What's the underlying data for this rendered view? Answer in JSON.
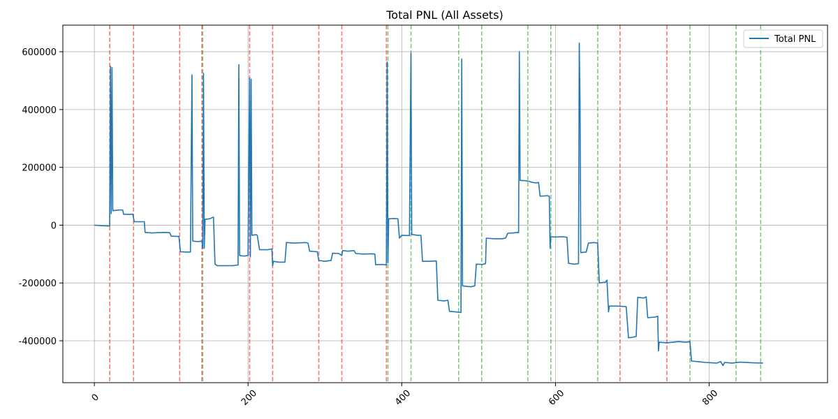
{
  "chart_data": {
    "type": "line",
    "title": "Total PNL (All Assets)",
    "xlabel": "",
    "ylabel": "",
    "xlim": [
      -41,
      954
    ],
    "ylim": [
      -545000,
      692000
    ],
    "x_ticks": [
      0,
      200,
      400,
      600,
      800
    ],
    "y_ticks": [
      -400000,
      -200000,
      0,
      200000,
      400000,
      600000
    ],
    "grid": true,
    "legend": {
      "position": "top-right",
      "entries": [
        "Total PNL"
      ]
    },
    "colors": {
      "line": "#1f77b4",
      "sell_marker": "#ff0000",
      "buy_marker": "#2ca02c",
      "grid": "#b0b0b0"
    },
    "series": [
      {
        "name": "Total PNL",
        "points": [
          [
            0,
            0
          ],
          [
            10,
            -2000
          ],
          [
            18,
            -3000
          ],
          [
            20,
            -2000
          ],
          [
            21,
            550000
          ],
          [
            22,
            40000
          ],
          [
            23,
            545000
          ],
          [
            24,
            50000
          ],
          [
            30,
            52000
          ],
          [
            35,
            53000
          ],
          [
            37,
            52000
          ],
          [
            38,
            38000
          ],
          [
            45,
            37000
          ],
          [
            50,
            38000
          ],
          [
            52,
            12000
          ],
          [
            60,
            12000
          ],
          [
            65,
            12000
          ],
          [
            66,
            -25000
          ],
          [
            75,
            -27000
          ],
          [
            90,
            -25000
          ],
          [
            98,
            -26000
          ],
          [
            100,
            -38000
          ],
          [
            110,
            -39000
          ],
          [
            112,
            -92000
          ],
          [
            120,
            -93000
          ],
          [
            125,
            -93000
          ],
          [
            127,
            520000
          ],
          [
            128,
            -55000
          ],
          [
            135,
            -57000
          ],
          [
            140,
            -55000
          ],
          [
            141,
            -80000
          ],
          [
            142,
            525000
          ],
          [
            143,
            -80000
          ],
          [
            144,
            20000
          ],
          [
            150,
            22000
          ],
          [
            155,
            28000
          ],
          [
            157,
            -135000
          ],
          [
            160,
            -140000
          ],
          [
            170,
            -140000
          ],
          [
            180,
            -140000
          ],
          [
            187,
            -138000
          ],
          [
            188,
            555000
          ],
          [
            189,
            -105000
          ],
          [
            195,
            -107000
          ],
          [
            200,
            -105000
          ],
          [
            202,
            510000
          ],
          [
            203,
            -110000
          ],
          [
            204,
            505000
          ],
          [
            205,
            -35000
          ],
          [
            210,
            -33000
          ],
          [
            212,
            -35000
          ],
          [
            215,
            -85000
          ],
          [
            225,
            -85000
          ],
          [
            231,
            -82000
          ],
          [
            232,
            -140000
          ],
          [
            233,
            -125000
          ],
          [
            240,
            -128000
          ],
          [
            248,
            -128000
          ],
          [
            250,
            -60000
          ],
          [
            260,
            -62000
          ],
          [
            275,
            -60000
          ],
          [
            278,
            -62000
          ],
          [
            280,
            -90000
          ],
          [
            290,
            -92000
          ],
          [
            292,
            -122000
          ],
          [
            300,
            -125000
          ],
          [
            308,
            -122000
          ],
          [
            310,
            -97000
          ],
          [
            318,
            -98000
          ],
          [
            322,
            -105000
          ],
          [
            323,
            -88000
          ],
          [
            330,
            -90000
          ],
          [
            338,
            -88000
          ],
          [
            340,
            -98000
          ],
          [
            350,
            -100000
          ],
          [
            360,
            -99000
          ],
          [
            365,
            -100000
          ],
          [
            366,
            -137000
          ],
          [
            375,
            -136000
          ],
          [
            380,
            -138000
          ],
          [
            381,
            565000
          ],
          [
            382,
            -130000
          ],
          [
            383,
            22000
          ],
          [
            390,
            23000
          ],
          [
            395,
            22000
          ],
          [
            397,
            -45000
          ],
          [
            400,
            -35000
          ],
          [
            410,
            -36000
          ],
          [
            412,
            595000
          ],
          [
            413,
            -32000
          ],
          [
            420,
            -35000
          ],
          [
            425,
            -35000
          ],
          [
            427,
            -125000
          ],
          [
            435,
            -125000
          ],
          [
            445,
            -124000
          ],
          [
            447,
            -260000
          ],
          [
            455,
            -262000
          ],
          [
            460,
            -260000
          ],
          [
            462,
            -298000
          ],
          [
            470,
            -300000
          ],
          [
            477,
            -302000
          ],
          [
            478,
            575000
          ],
          [
            479,
            -210000
          ],
          [
            485,
            -212000
          ],
          [
            490,
            -213000
          ],
          [
            495,
            -210000
          ],
          [
            497,
            -135000
          ],
          [
            505,
            -136000
          ],
          [
            509,
            -133000
          ],
          [
            510,
            -45000
          ],
          [
            520,
            -47000
          ],
          [
            530,
            -47000
          ],
          [
            535,
            -45000
          ],
          [
            538,
            -28000
          ],
          [
            545,
            -27000
          ],
          [
            550,
            -25000
          ],
          [
            552,
            -26000
          ],
          [
            553,
            600000
          ],
          [
            554,
            155000
          ],
          [
            560,
            154000
          ],
          [
            565,
            152000
          ],
          [
            570,
            148000
          ],
          [
            575,
            146000
          ],
          [
            578,
            148000
          ],
          [
            580,
            100000
          ],
          [
            590,
            102000
          ],
          [
            592,
            100000
          ],
          [
            593,
            -80000
          ],
          [
            594,
            -40000
          ],
          [
            600,
            -41000
          ],
          [
            610,
            -40000
          ],
          [
            615,
            -42000
          ],
          [
            617,
            -132000
          ],
          [
            625,
            -135000
          ],
          [
            630,
            -133000
          ],
          [
            631,
            630000
          ],
          [
            632,
            420000
          ],
          [
            633,
            -95000
          ],
          [
            640,
            -93000
          ],
          [
            643,
            -62000
          ],
          [
            650,
            -60000
          ],
          [
            655,
            -62000
          ],
          [
            657,
            -200000
          ],
          [
            665,
            -197000
          ],
          [
            667,
            -190000
          ],
          [
            669,
            -300000
          ],
          [
            670,
            -280000
          ],
          [
            680,
            -280000
          ],
          [
            692,
            -282000
          ],
          [
            695,
            -390000
          ],
          [
            700,
            -388000
          ],
          [
            705,
            -385000
          ],
          [
            707,
            -250000
          ],
          [
            715,
            -252000
          ],
          [
            718,
            -248000
          ],
          [
            720,
            -320000
          ],
          [
            730,
            -318000
          ],
          [
            733,
            -315000
          ],
          [
            734,
            -435000
          ],
          [
            735,
            -405000
          ],
          [
            745,
            -407000
          ],
          [
            760,
            -403000
          ],
          [
            770,
            -405000
          ],
          [
            775,
            -403000
          ],
          [
            777,
            -470000
          ],
          [
            785,
            -472000
          ],
          [
            795,
            -475000
          ],
          [
            810,
            -477000
          ],
          [
            815,
            -472000
          ],
          [
            818,
            -486000
          ],
          [
            820,
            -475000
          ],
          [
            830,
            -477000
          ],
          [
            840,
            -474000
          ],
          [
            855,
            -476000
          ],
          [
            870,
            -477000
          ]
        ]
      }
    ],
    "markers": {
      "sell": [
        20,
        51,
        111,
        140,
        202,
        232,
        292,
        322,
        380,
        684,
        745
      ],
      "buy": [
        141,
        382,
        412,
        474,
        504,
        564,
        594,
        655,
        775,
        835,
        867
      ]
    }
  }
}
